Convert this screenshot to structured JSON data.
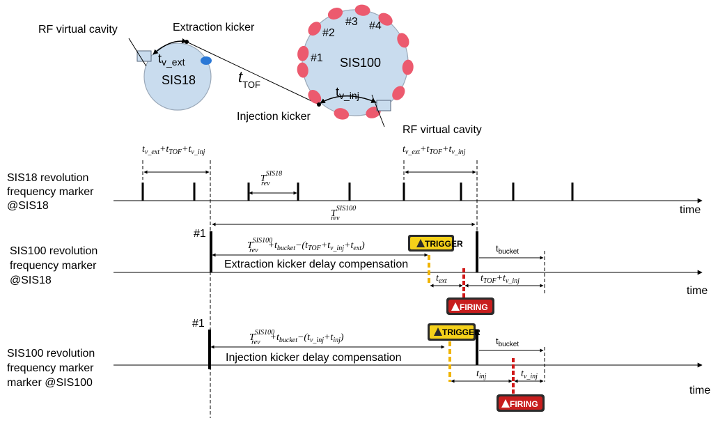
{
  "ring_diagram": {
    "sis18_name": "SIS18",
    "sis100_name": "SIS100",
    "rf_cavity_left": "RF virtual cavity",
    "rf_cavity_right": "RF virtual cavity",
    "extraction_kicker": "Extraction kicker",
    "injection_kicker": "Injection kicker",
    "t_v_ext": {
      "main": "t",
      "sub": "v_ext"
    },
    "t_v_inj": {
      "main": "t",
      "sub": "v_inj"
    },
    "t_tof": {
      "main": "t",
      "sub": "TOF"
    },
    "bucket_labels": [
      "#1",
      "#2",
      "#3",
      "#4"
    ],
    "colors": {
      "ring_fill": "#c9dcee",
      "ring_stroke": "#9aa8b8",
      "bucket": "#ec5a6e",
      "cavity": "#c9dcee",
      "kicker_dot": "#2a78d6"
    }
  },
  "timeline_sis18": {
    "label_lines": [
      "SIS18 revolution",
      "frequency marker",
      "@SIS18"
    ],
    "axis_label": "time",
    "sum_label_left": "t_v_ext + t_TOF + t_v_inj",
    "sum_label_right": "t_v_ext + t_TOF + t_v_inj",
    "period_label": {
      "main": "T",
      "sub": "rev",
      "sup": "SIS18"
    }
  },
  "period_sis100": {
    "main": "T",
    "sub": "rev",
    "sup": "SIS100"
  },
  "timeline_ext": {
    "label_lines": [
      "SIS100 revolution",
      "frequency marker",
      "@SIS18"
    ],
    "marker_label": "#1",
    "formula": "T_rev^SIS100 + t_bucket − (t_TOF + t_v_inj + t_ext)",
    "compensation_label": "Extraction kicker delay compensation",
    "bucket_label": "t_bucket",
    "t_ext_label": "t_ext",
    "tof_inj_label": "t_TOF + t_v_inj",
    "axis_label": "time",
    "trigger_label": "TRIGGER",
    "firing_label": "FIRING"
  },
  "timeline_inj": {
    "label_lines": [
      "SIS100 revolution",
      "frequency marker",
      "marker @SIS100"
    ],
    "marker_label": "#1",
    "formula": "T_rev^SIS100 + t_bucket − (t_v_inj + t_inj)",
    "compensation_label": "Injection kicker delay compensation",
    "bucket_label": "t_bucket",
    "t_inj_label": "t_inj",
    "v_inj_label": "t_v_inj",
    "axis_label": "time",
    "trigger_label": "TRIGGER",
    "firing_label": "FIRING"
  },
  "colors": {
    "trigger_bg": "#f5d11a",
    "firing_bg": "#c81e1e",
    "badge_dark": "#2b2b2b",
    "trigger_dash": "#f0b400",
    "firing_dash": "#d01818"
  }
}
